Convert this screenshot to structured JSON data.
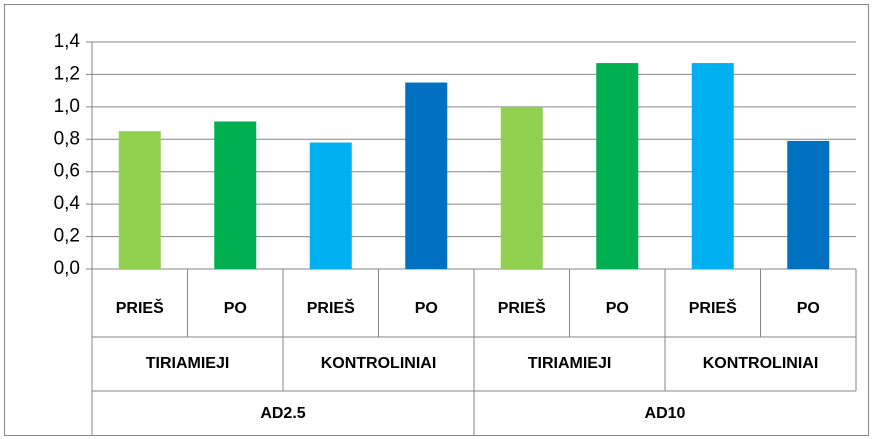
{
  "chart_data": {
    "type": "bar",
    "categories": [
      "PRIEŠ",
      "PO",
      "PRIEŠ",
      "PO",
      "PRIEŠ",
      "PO",
      "PRIEŠ",
      "PO"
    ],
    "category_levels": [
      [
        "TIRIAMIEJI",
        "KONTROLINIAI",
        "TIRIAMIEJI",
        "KONTROLINIAI"
      ],
      [
        "AD2.5",
        "AD10"
      ]
    ],
    "values": [
      0.85,
      0.91,
      0.78,
      1.15,
      1.0,
      1.27,
      1.27,
      0.79
    ],
    "colors": [
      "#92d050",
      "#00b050",
      "#00b0f0",
      "#0070c0",
      "#92d050",
      "#00b050",
      "#00b0f0",
      "#0070c0"
    ],
    "ylim": [
      0,
      1.4
    ],
    "yticks": [
      {
        "value": 0,
        "label": "0,0"
      },
      {
        "value": 0.2,
        "label": "0,2"
      },
      {
        "value": 0.4,
        "label": "0,4"
      },
      {
        "value": 0.6,
        "label": "0,6"
      },
      {
        "value": 0.8,
        "label": "0,8"
      },
      {
        "value": 1.0,
        "label": "1,0"
      },
      {
        "value": 1.2,
        "label": "1,2"
      },
      {
        "value": 1.4,
        "label": "1,4"
      }
    ],
    "grid": true
  }
}
